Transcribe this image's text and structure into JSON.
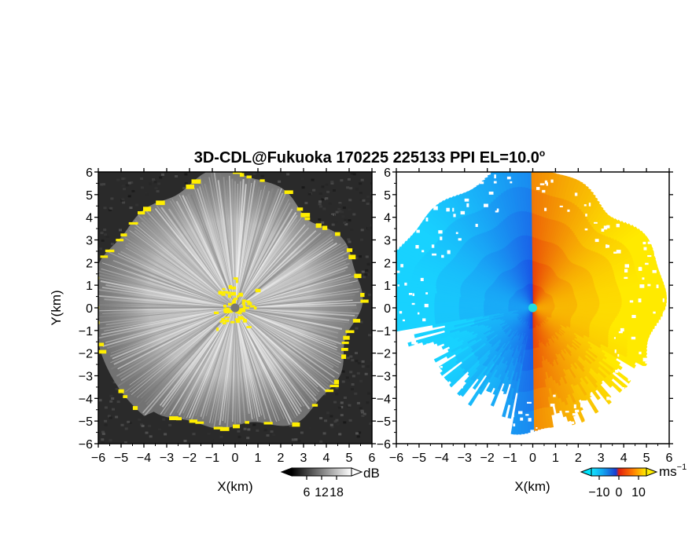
{
  "title_main": "3D-CDL@Fukuoka 170225 225133 PPI EL=10.0",
  "title_deg": "o",
  "chart_data": [
    {
      "type": "heatmap",
      "panel": "snr",
      "xlabel": "X(km)",
      "ylabel": "Y(km)",
      "xlim": [
        -6,
        6
      ],
      "ylim": [
        -6,
        6
      ],
      "x_ticks": [
        "−6",
        "−5",
        "−4",
        "−3",
        "−2",
        "−1",
        "0",
        "1",
        "2",
        "3",
        "4",
        "5",
        "6"
      ],
      "y_ticks": [
        "−6",
        "−5",
        "−4",
        "−3",
        "−2",
        "−1",
        "0",
        "1",
        "2",
        "3",
        "4",
        "5",
        "6"
      ],
      "colorbar": {
        "unit": "dB",
        "ticks": [
          "6",
          "12",
          "18"
        ],
        "tick_values": [
          6,
          12,
          18
        ],
        "range": [
          0,
          24
        ]
      },
      "colors": {
        "background": "#2e2e2e",
        "rays_light": "#e8e8e8",
        "saturated": "#ffee00",
        "center": "#777777"
      }
    },
    {
      "type": "heatmap",
      "panel": "velocity",
      "xlabel": "X(km)",
      "xlim": [
        -6,
        6
      ],
      "ylim": [
        -6,
        6
      ],
      "x_ticks": [
        "−6",
        "−5",
        "−4",
        "−3",
        "−2",
        "−1",
        "0",
        "1",
        "2",
        "3",
        "4",
        "5",
        "6"
      ],
      "y_ticks": [
        "−6",
        "−5",
        "−4",
        "−3",
        "−2",
        "−1",
        "0",
        "1",
        "2",
        "3",
        "4",
        "5",
        "6"
      ],
      "colorbar": {
        "unit": "ms",
        "unit_exp": "−1",
        "ticks": [
          "−10",
          "0",
          "10"
        ],
        "tick_values": [
          -10,
          0,
          10
        ],
        "range": [
          -14,
          14
        ]
      },
      "colors": {
        "negative_light": "#18d2ff",
        "negative_deep": "#1b3fe0",
        "positive_deep": "#e62a0a",
        "positive_light": "#ffea00",
        "center": "#22dddd"
      }
    }
  ]
}
